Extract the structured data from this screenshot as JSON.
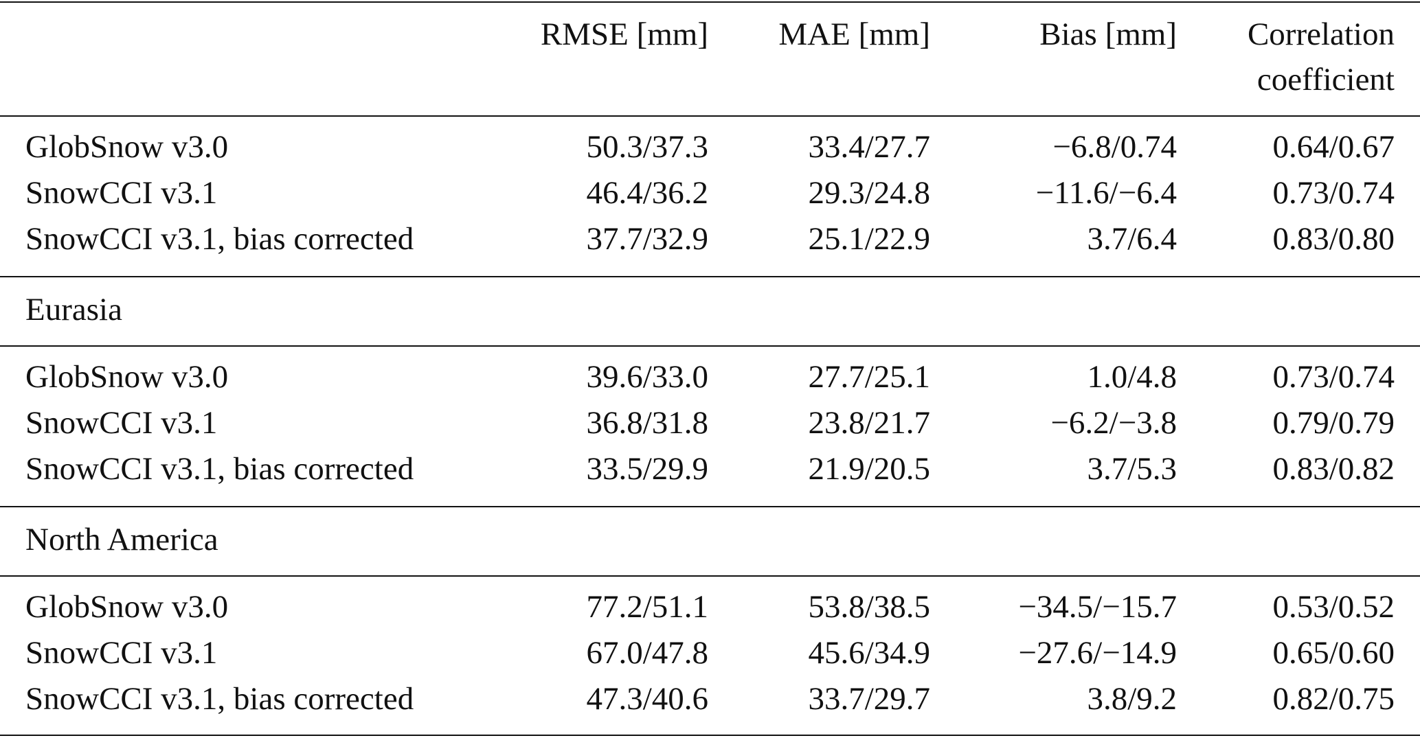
{
  "header": {
    "columns": [
      "RMSE [mm]",
      "MAE [mm]",
      "Bias [mm]",
      "Correlation coefficient"
    ]
  },
  "groups": [
    {
      "rows": [
        [
          "GlobSnow v3.0",
          "50.3/37.3",
          "33.4/27.7",
          "−6.8/0.74",
          "0.64/0.67"
        ],
        [
          "SnowCCI v3.1",
          "46.4/36.2",
          "29.3/24.8",
          "−11.6/−6.4",
          "0.73/0.74"
        ],
        [
          "SnowCCI v3.1, bias corrected",
          "37.7/32.9",
          "25.1/22.9",
          "3.7/6.4",
          "0.83/0.80"
        ]
      ]
    },
    {
      "label": "Eurasia",
      "rows": [
        [
          "GlobSnow v3.0",
          "39.6/33.0",
          "27.7/25.1",
          "1.0/4.8",
          "0.73/0.74"
        ],
        [
          "SnowCCI v3.1",
          "36.8/31.8",
          "23.8/21.7",
          "−6.2/−3.8",
          "0.79/0.79"
        ],
        [
          "SnowCCI v3.1, bias corrected",
          "33.5/29.9",
          "21.9/20.5",
          "3.7/5.3",
          "0.83/0.82"
        ]
      ]
    },
    {
      "label": "North America",
      "rows": [
        [
          "GlobSnow v3.0",
          "77.2/51.1",
          "53.8/38.5",
          "−34.5/−15.7",
          "0.53/0.52"
        ],
        [
          "SnowCCI v3.1",
          "67.0/47.8",
          "45.6/34.9",
          "−27.6/−14.9",
          "0.65/0.60"
        ],
        [
          "SnowCCI v3.1, bias corrected",
          "47.3/40.6",
          "33.7/29.7",
          "3.8/9.2",
          "0.82/0.75"
        ]
      ]
    }
  ]
}
